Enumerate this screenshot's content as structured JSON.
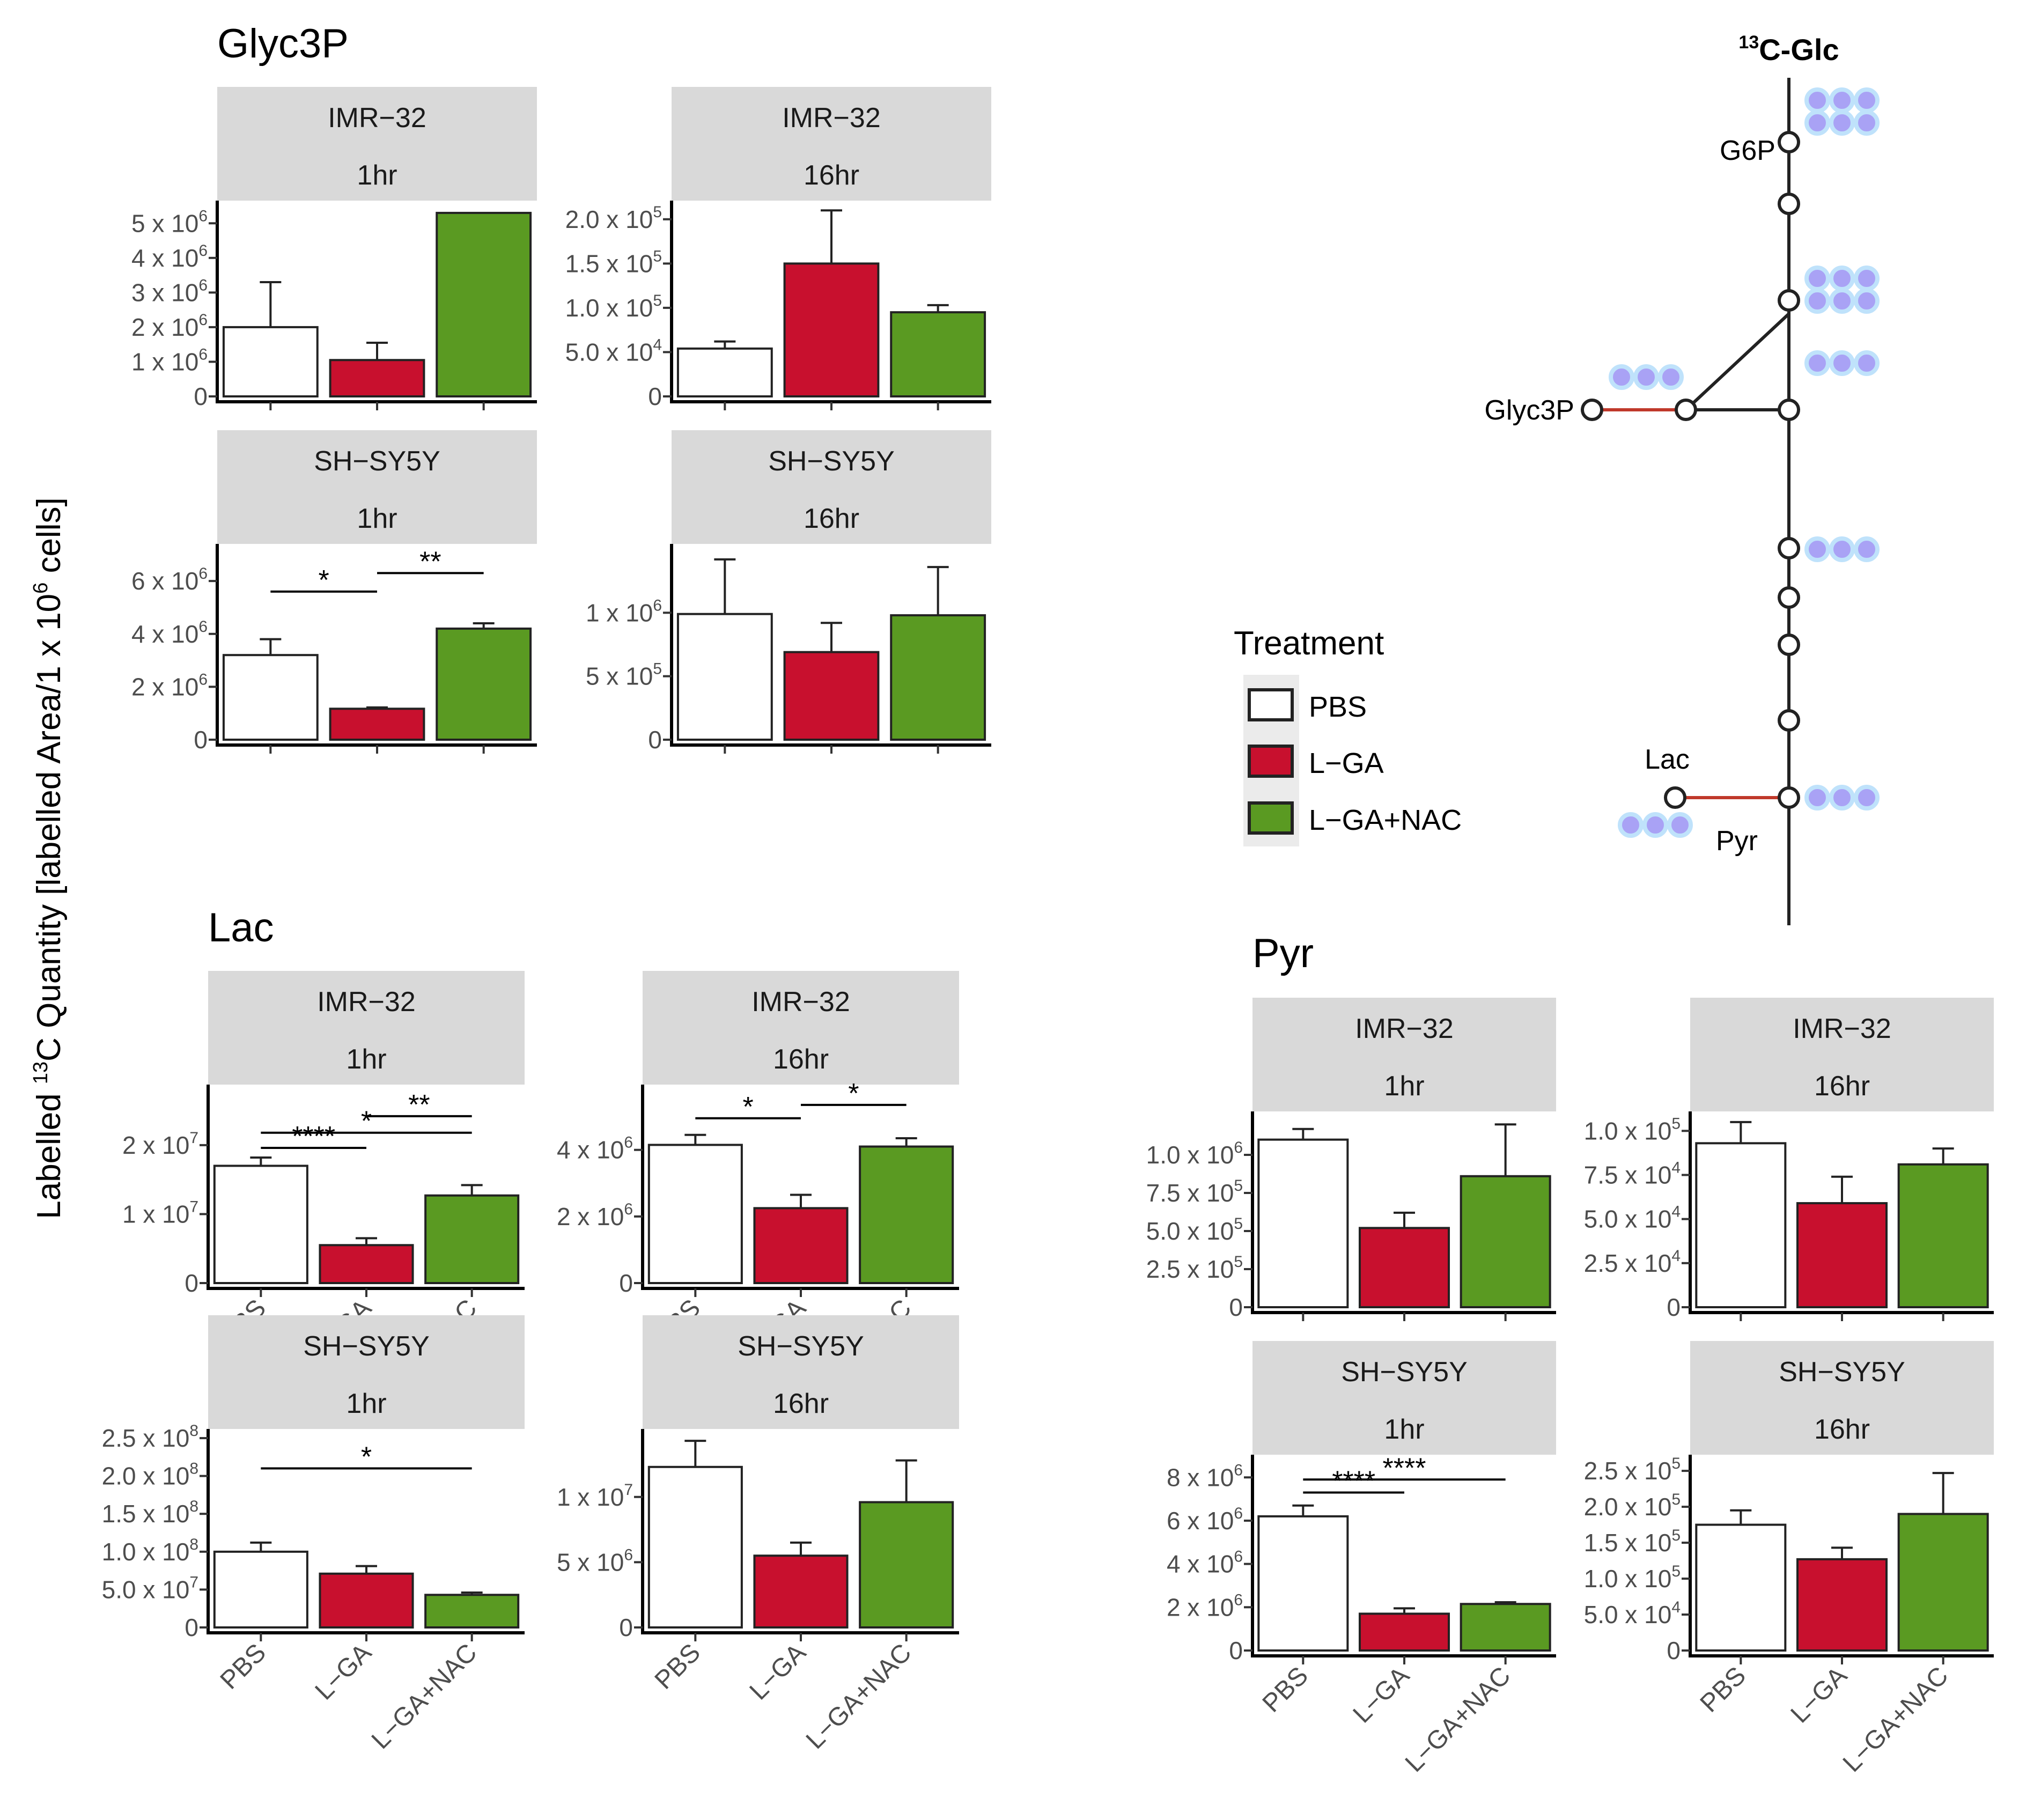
{
  "colors": {
    "PBS": "#ffffff",
    "L-GA": "#c8102e",
    "L-GA+NAC": "#5a9a22",
    "strip": "#d9d9d9",
    "path_red": "#c0392b",
    "dot_fill": "#a9a2f5",
    "dot_ring": "#bfe2fb"
  },
  "y_axis_label": {
    "pre": "Labelled ",
    "sup": "13",
    "mid": "C Quantity [labelled Area/1 x 10",
    "sup2": "6",
    "post": " cells]"
  },
  "legend": {
    "title": "Treatment",
    "items": [
      {
        "label": "PBS",
        "color": "#ffffff"
      },
      {
        "label": "L−GA",
        "color": "#c8102e"
      },
      {
        "label": "L−GA+NAC",
        "color": "#5a9a22"
      }
    ]
  },
  "pathway": {
    "source": {
      "sup": "13",
      "text": "C-Glc"
    },
    "labels": {
      "g6p": "G6P",
      "glyc3p": "Glyc3P",
      "lac": "Lac",
      "pyr": "Pyr"
    }
  },
  "chart_data": [
    {
      "type": "bar",
      "metabolite": "Glyc3P",
      "cell_line": "IMR−32",
      "time": "1hr",
      "categories": [
        "PBS",
        "L−GA",
        "L−GA+NAC"
      ],
      "values": [
        2000000,
        1050000,
        5300000
      ],
      "errors": [
        1300000,
        500000,
        0
      ],
      "ylim": [
        0,
        5500000
      ],
      "yticks": [
        {
          "v": 0,
          "m": "0"
        },
        {
          "v": 1000000,
          "m": "1 x 10",
          "e": "6"
        },
        {
          "v": 2000000,
          "m": "2 x 10",
          "e": "6"
        },
        {
          "v": 3000000,
          "m": "3 x 10",
          "e": "6"
        },
        {
          "v": 4000000,
          "m": "4 x 10",
          "e": "6"
        },
        {
          "v": 5000000,
          "m": "5 x 10",
          "e": "6"
        }
      ],
      "sig": [],
      "x_labels_shown": false
    },
    {
      "type": "bar",
      "metabolite": "Glyc3P",
      "cell_line": "IMR−32",
      "time": "16hr",
      "categories": [
        "PBS",
        "L−GA",
        "L−GA+NAC"
      ],
      "values": [
        54000,
        150000,
        95000
      ],
      "errors": [
        8000,
        60000,
        8000
      ],
      "ylim": [
        0,
        215000
      ],
      "yticks": [
        {
          "v": 0,
          "m": "0"
        },
        {
          "v": 50000,
          "m": "5.0 x 10",
          "e": "4"
        },
        {
          "v": 100000,
          "m": "1.0 x 10",
          "e": "5"
        },
        {
          "v": 150000,
          "m": "1.5 x 10",
          "e": "5"
        },
        {
          "v": 200000,
          "m": "2.0 x 10",
          "e": "5"
        }
      ],
      "sig": [],
      "x_labels_shown": false
    },
    {
      "type": "bar",
      "metabolite": "Glyc3P",
      "cell_line": "SH−SY5Y",
      "time": "1hr",
      "categories": [
        "PBS",
        "L−GA",
        "L−GA+NAC"
      ],
      "values": [
        3200000,
        1170000,
        4200000
      ],
      "errors": [
        600000,
        50000,
        200000
      ],
      "ylim": [
        0,
        7200000
      ],
      "yticks": [
        {
          "v": 0,
          "m": "0"
        },
        {
          "v": 2000000,
          "m": "2 x 10",
          "e": "6"
        },
        {
          "v": 4000000,
          "m": "4 x 10",
          "e": "6"
        },
        {
          "v": 6000000,
          "m": "6 x 10",
          "e": "6"
        }
      ],
      "sig": [
        {
          "from": 0,
          "to": 1,
          "y": 5600000,
          "label": "*"
        },
        {
          "from": 1,
          "to": 2,
          "y": 6300000,
          "label": "**"
        }
      ],
      "x_labels_shown": false
    },
    {
      "type": "bar",
      "metabolite": "Glyc3P",
      "cell_line": "SH−SY5Y",
      "time": "16hr",
      "categories": [
        "PBS",
        "L−GA",
        "L−GA+NAC"
      ],
      "values": [
        990000,
        690000,
        980000
      ],
      "errors": [
        430000,
        230000,
        380000
      ],
      "ylim": [
        0,
        1500000
      ],
      "yticks": [
        {
          "v": 0,
          "m": "0"
        },
        {
          "v": 500000,
          "m": "5 x 10",
          "e": "5"
        },
        {
          "v": 1000000,
          "m": "1 x 10",
          "e": "6"
        }
      ],
      "sig": [],
      "x_labels_shown": false
    },
    {
      "type": "bar",
      "metabolite": "Lac",
      "cell_line": "IMR−32",
      "time": "1hr",
      "categories": [
        "PBS",
        "L−GA",
        "L−GA+NAC"
      ],
      "values": [
        17000000,
        5500000,
        12700000
      ],
      "errors": [
        1200000,
        1000000,
        1500000
      ],
      "ylim": [
        0,
        28000000
      ],
      "yticks": [
        {
          "v": 0,
          "m": "0"
        },
        {
          "v": 10000000,
          "m": "1 x 10",
          "e": "7"
        },
        {
          "v": 20000000,
          "m": "2 x 10",
          "e": "7"
        }
      ],
      "sig": [
        {
          "from": 0,
          "to": 1,
          "y": 19600000,
          "label": "****"
        },
        {
          "from": 0,
          "to": 2,
          "y": 21800000,
          "label": "*"
        },
        {
          "from": 1,
          "to": 2,
          "y": 24200000,
          "label": "**"
        }
      ],
      "x_labels_shown": true
    },
    {
      "type": "bar",
      "metabolite": "Lac",
      "cell_line": "IMR−32",
      "time": "16hr",
      "categories": [
        "PBS",
        "L−GA",
        "L−GA+NAC"
      ],
      "values": [
        4150000,
        2250000,
        4100000
      ],
      "errors": [
        300000,
        400000,
        250000
      ],
      "ylim": [
        0,
        5800000
      ],
      "yticks": [
        {
          "v": 0,
          "m": "0"
        },
        {
          "v": 2000000,
          "m": "2 x 10",
          "e": "6"
        },
        {
          "v": 4000000,
          "m": "4 x 10",
          "e": "6"
        }
      ],
      "sig": [
        {
          "from": 0,
          "to": 1,
          "y": 4950000,
          "label": "*"
        },
        {
          "from": 1,
          "to": 2,
          "y": 5350000,
          "label": "*"
        }
      ],
      "x_labels_shown": true
    },
    {
      "type": "bar",
      "metabolite": "Lac",
      "cell_line": "SH−SY5Y",
      "time": "1hr",
      "categories": [
        "PBS",
        "L−GA",
        "L−GA+NAC"
      ],
      "values": [
        100000000,
        71000000,
        43000000
      ],
      "errors": [
        12000000,
        10000000,
        3000000
      ],
      "ylim": [
        0,
        255000000
      ],
      "yticks": [
        {
          "v": 0,
          "m": "0"
        },
        {
          "v": 50000000,
          "m": "5.0 x 10",
          "e": "7"
        },
        {
          "v": 100000000,
          "m": "1.0 x 10",
          "e": "8"
        },
        {
          "v": 150000000,
          "m": "1.5 x 10",
          "e": "8"
        },
        {
          "v": 200000000,
          "m": "2.0 x 10",
          "e": "8"
        },
        {
          "v": 250000000,
          "m": "2.5 x 10",
          "e": "8"
        }
      ],
      "sig": [
        {
          "from": 0,
          "to": 2,
          "y": 210000000,
          "label": "*"
        }
      ],
      "x_labels_shown": true
    },
    {
      "type": "bar",
      "metabolite": "Lac",
      "cell_line": "SH−SY5Y",
      "time": "16hr",
      "categories": [
        "PBS",
        "L−GA",
        "L−GA+NAC"
      ],
      "values": [
        12300000,
        5500000,
        9600000
      ],
      "errors": [
        2000000,
        1000000,
        3200000
      ],
      "ylim": [
        0,
        14800000
      ],
      "yticks": [
        {
          "v": 0,
          "m": "0"
        },
        {
          "v": 5000000,
          "m": "5 x 10",
          "e": "6"
        },
        {
          "v": 10000000,
          "m": "1 x 10",
          "e": "7"
        }
      ],
      "sig": [],
      "x_labels_shown": true
    },
    {
      "type": "bar",
      "metabolite": "Pyr",
      "cell_line": "IMR−32",
      "time": "1hr",
      "categories": [
        "PBS",
        "L−GA",
        "L−GA+NAC"
      ],
      "values": [
        1100000,
        520000,
        860000
      ],
      "errors": [
        70000,
        100000,
        340000
      ],
      "ylim": [
        0,
        1250000
      ],
      "yticks": [
        {
          "v": 0,
          "m": "0"
        },
        {
          "v": 250000,
          "m": "2.5 x 10",
          "e": "5"
        },
        {
          "v": 500000,
          "m": "5.0 x 10",
          "e": "5"
        },
        {
          "v": 750000,
          "m": "7.5 x 10",
          "e": "5"
        },
        {
          "v": 1000000,
          "m": "1.0 x 10",
          "e": "6"
        }
      ],
      "sig": [],
      "x_labels_shown": false
    },
    {
      "type": "bar",
      "metabolite": "Pyr",
      "cell_line": "IMR−32",
      "time": "16hr",
      "categories": [
        "PBS",
        "L−GA",
        "L−GA+NAC"
      ],
      "values": [
        93000,
        59000,
        81000
      ],
      "errors": [
        12000,
        15000,
        9000
      ],
      "ylim": [
        0,
        108000
      ],
      "yticks": [
        {
          "v": 0,
          "m": "0"
        },
        {
          "v": 25000,
          "m": "2.5 x 10",
          "e": "4"
        },
        {
          "v": 50000,
          "m": "5.0 x 10",
          "e": "4"
        },
        {
          "v": 75000,
          "m": "7.5 x 10",
          "e": "4"
        },
        {
          "v": 100000,
          "m": "1.0 x 10",
          "e": "5"
        }
      ],
      "sig": [],
      "x_labels_shown": false
    },
    {
      "type": "bar",
      "metabolite": "Pyr",
      "cell_line": "SH−SY5Y",
      "time": "1hr",
      "categories": [
        "PBS",
        "L−GA",
        "L−GA+NAC"
      ],
      "values": [
        6200000,
        1700000,
        2150000
      ],
      "errors": [
        500000,
        250000,
        80000
      ],
      "ylim": [
        0,
        8800000
      ],
      "yticks": [
        {
          "v": 0,
          "m": "0"
        },
        {
          "v": 2000000,
          "m": "2 x 10",
          "e": "6"
        },
        {
          "v": 4000000,
          "m": "4 x 10",
          "e": "6"
        },
        {
          "v": 6000000,
          "m": "6 x 10",
          "e": "6"
        },
        {
          "v": 8000000,
          "m": "8 x 10",
          "e": "6"
        }
      ],
      "sig": [
        {
          "from": 0,
          "to": 1,
          "y": 7300000,
          "label": "****"
        },
        {
          "from": 0,
          "to": 2,
          "y": 7900000,
          "label": "****"
        }
      ],
      "x_labels_shown": true
    },
    {
      "type": "bar",
      "metabolite": "Pyr",
      "cell_line": "SH−SY5Y",
      "time": "16hr",
      "categories": [
        "PBS",
        "L−GA",
        "L−GA+NAC"
      ],
      "values": [
        175000,
        127000,
        190000
      ],
      "errors": [
        20000,
        16000,
        57000
      ],
      "ylim": [
        0,
        265000
      ],
      "yticks": [
        {
          "v": 0,
          "m": "0"
        },
        {
          "v": 50000,
          "m": "5.0 x 10",
          "e": "4"
        },
        {
          "v": 100000,
          "m": "1.0 x 10",
          "e": "5"
        },
        {
          "v": 150000,
          "m": "1.5 x 10",
          "e": "5"
        },
        {
          "v": 200000,
          "m": "2.0 x 10",
          "e": "5"
        },
        {
          "v": 250000,
          "m": "2.5 x 10",
          "e": "5"
        }
      ],
      "sig": [],
      "x_labels_shown": true
    }
  ]
}
